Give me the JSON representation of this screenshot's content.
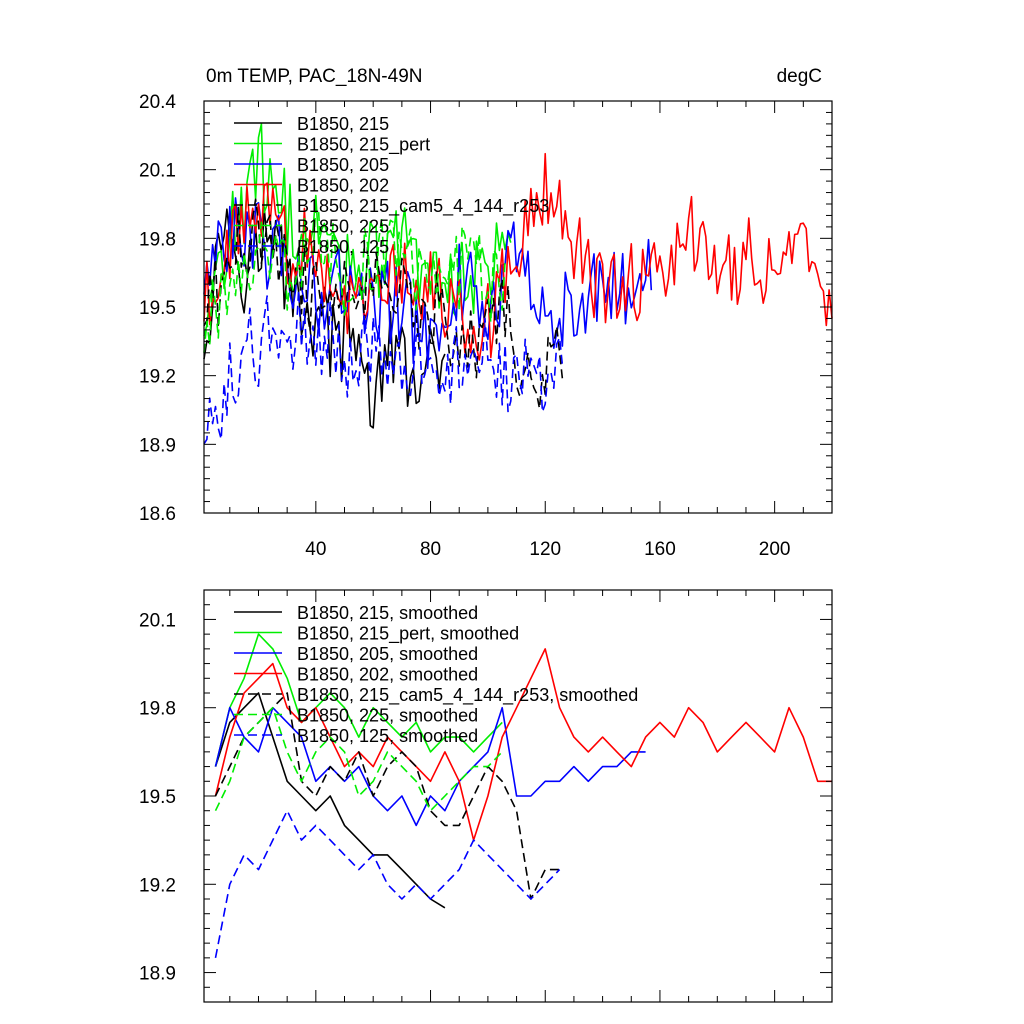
{
  "chart_data": [
    {
      "type": "line",
      "title_left": "0m TEMP, PAC_18N-49N",
      "title_right": "degC",
      "xlim": [
        1,
        220
      ],
      "ylim": [
        18.6,
        20.4
      ],
      "x_ticks": [
        40,
        80,
        120,
        160,
        200
      ],
      "y_ticks": [
        18.6,
        18.9,
        19.2,
        19.5,
        19.8,
        20.1,
        20.4
      ],
      "x_tick_labels": [
        "40",
        "80",
        "120",
        "160",
        "200"
      ],
      "y_tick_labels": [
        "18.6",
        "18.9",
        "19.2",
        "19.5",
        "19.8",
        "20.1",
        "20.4"
      ],
      "legend_placement": "top-left",
      "legend": [
        "B1850, 215",
        "B1850, 215_pert",
        "B1850, 205",
        "B1850, 202",
        "B1850, 215_cam5_4_144_r253",
        "B1850, 225",
        "B1850, 125"
      ],
      "series": [
        {
          "name": "B1850, 215",
          "color": "#000000",
          "dash": "solid",
          "x_end": 85,
          "x": [
            1,
            8,
            15,
            25,
            35,
            45,
            55,
            60,
            65,
            75,
            85
          ],
          "y": [
            19.4,
            19.9,
            19.7,
            19.8,
            19.5,
            19.4,
            19.3,
            19.1,
            19.3,
            19.2,
            19.2
          ]
        },
        {
          "name": "B1850, 215_pert",
          "color": "#00ee00",
          "dash": "solid",
          "x_end": 108,
          "x": [
            1,
            10,
            20,
            30,
            40,
            50,
            60,
            70,
            80,
            90,
            100,
            108
          ],
          "y": [
            19.4,
            19.8,
            20.1,
            19.9,
            19.8,
            19.7,
            19.7,
            19.8,
            19.6,
            19.6,
            19.7,
            19.8
          ]
        },
        {
          "name": "B1850, 205",
          "color": "#0000ff",
          "dash": "solid",
          "x_end": 157,
          "x": [
            1,
            10,
            20,
            30,
            40,
            50,
            60,
            70,
            80,
            90,
            100,
            110,
            120,
            130,
            140,
            150,
            157
          ],
          "y": [
            19.6,
            19.8,
            19.8,
            19.7,
            19.6,
            19.6,
            19.5,
            19.5,
            19.4,
            19.6,
            19.5,
            19.7,
            19.5,
            19.5,
            19.6,
            19.6,
            19.7
          ]
        },
        {
          "name": "B1850, 202",
          "color": "#ff0000",
          "dash": "solid",
          "x_end": 220,
          "x": [
            1,
            10,
            20,
            30,
            40,
            50,
            60,
            70,
            80,
            90,
            98,
            108,
            120,
            130,
            140,
            150,
            160,
            170,
            180,
            190,
            200,
            210,
            215,
            220
          ],
          "y": [
            19.5,
            19.8,
            19.9,
            19.8,
            19.7,
            19.6,
            19.6,
            19.7,
            19.6,
            19.5,
            19.3,
            19.8,
            20.0,
            19.8,
            19.6,
            19.6,
            19.6,
            19.8,
            19.7,
            19.7,
            19.7,
            19.8,
            19.6,
            19.6
          ]
        },
        {
          "name": "B1850, 215_cam5_4_144_r253",
          "color": "#000000",
          "dash": "dashed",
          "x_end": 126,
          "x": [
            1,
            10,
            20,
            28,
            35,
            45,
            55,
            65,
            75,
            85,
            95,
            105,
            115,
            120,
            126
          ],
          "y": [
            19.5,
            19.7,
            19.8,
            19.8,
            19.6,
            19.6,
            19.6,
            19.6,
            19.5,
            19.4,
            19.4,
            19.5,
            19.1,
            19.2,
            19.3
          ]
        },
        {
          "name": "B1850, 225",
          "color": "#00ee00",
          "dash": "dashed",
          "x_end": 106,
          "x": [
            1,
            10,
            20,
            30,
            40,
            50,
            60,
            70,
            80,
            90,
            100,
            106
          ],
          "y": [
            19.4,
            19.6,
            19.8,
            19.7,
            19.8,
            19.6,
            19.7,
            19.7,
            19.6,
            19.7,
            19.6,
            19.7
          ]
        },
        {
          "name": "B1850, 125",
          "color": "#0000ff",
          "dash": "dashed",
          "x_end": 126,
          "x": [
            1,
            10,
            20,
            30,
            40,
            50,
            60,
            70,
            80,
            90,
            100,
            110,
            115,
            120,
            126
          ],
          "y": [
            18.9,
            19.2,
            19.3,
            19.4,
            19.4,
            19.3,
            19.3,
            19.2,
            19.2,
            19.3,
            19.3,
            19.2,
            19.1,
            19.2,
            19.3
          ]
        }
      ]
    },
    {
      "type": "line",
      "xlim": [
        1,
        220
      ],
      "ylim": [
        18.8,
        20.2
      ],
      "x_ticks": [
        40,
        80,
        120,
        160,
        200
      ],
      "y_ticks": [
        18.9,
        19.2,
        19.5,
        19.8,
        20.1
      ],
      "y_tick_labels": [
        "18.9",
        "19.2",
        "19.5",
        "19.8",
        "20.1"
      ],
      "legend_placement": "top-left",
      "legend": [
        "B1850, 215, smoothed",
        "B1850, 215_pert, smoothed",
        "B1850, 205, smoothed",
        "B1850, 202, smoothed",
        "B1850, 215_cam5_4_144_r253, smoothed",
        "B1850, 225, smoothed",
        "B1850, 125, smoothed"
      ],
      "series": [
        {
          "name": "B1850, 215, smoothed",
          "color": "#000000",
          "dash": "solid",
          "x": [
            5,
            10,
            15,
            20,
            25,
            30,
            35,
            40,
            45,
            50,
            55,
            60,
            65,
            70,
            75,
            80,
            85
          ],
          "y": [
            19.6,
            19.75,
            19.8,
            19.85,
            19.7,
            19.55,
            19.5,
            19.45,
            19.5,
            19.4,
            19.35,
            19.3,
            19.3,
            19.25,
            19.2,
            19.15,
            19.12
          ]
        },
        {
          "name": "B1850, 215_pert, smoothed",
          "color": "#00ee00",
          "dash": "solid",
          "x": [
            5,
            10,
            15,
            20,
            25,
            30,
            35,
            40,
            45,
            50,
            55,
            60,
            65,
            70,
            75,
            80,
            85,
            90,
            95,
            100,
            105
          ],
          "y": [
            19.6,
            19.8,
            19.9,
            20.05,
            20.0,
            19.9,
            19.75,
            19.8,
            19.85,
            19.8,
            19.7,
            19.8,
            19.75,
            19.7,
            19.75,
            19.65,
            19.7,
            19.7,
            19.65,
            19.7,
            19.75
          ]
        },
        {
          "name": "B1850, 205, smoothed",
          "color": "#0000ff",
          "dash": "solid",
          "x": [
            5,
            10,
            15,
            20,
            25,
            30,
            35,
            40,
            45,
            50,
            55,
            60,
            65,
            70,
            75,
            80,
            85,
            90,
            95,
            100,
            105,
            110,
            115,
            120,
            125,
            130,
            135,
            140,
            145,
            150,
            155
          ],
          "y": [
            19.6,
            19.8,
            19.7,
            19.65,
            19.8,
            19.75,
            19.7,
            19.55,
            19.6,
            19.55,
            19.6,
            19.5,
            19.45,
            19.5,
            19.4,
            19.5,
            19.45,
            19.55,
            19.6,
            19.65,
            19.8,
            19.5,
            19.5,
            19.55,
            19.55,
            19.6,
            19.55,
            19.6,
            19.6,
            19.65,
            19.65
          ]
        },
        {
          "name": "B1850, 202, smoothed",
          "color": "#ff0000",
          "dash": "solid",
          "x": [
            5,
            10,
            15,
            20,
            25,
            30,
            35,
            40,
            45,
            50,
            55,
            60,
            65,
            70,
            75,
            80,
            85,
            90,
            95,
            100,
            105,
            110,
            115,
            120,
            125,
            130,
            135,
            140,
            145,
            150,
            155,
            160,
            165,
            170,
            175,
            180,
            185,
            190,
            195,
            200,
            205,
            210,
            215,
            220
          ],
          "y": [
            19.5,
            19.7,
            19.85,
            19.9,
            19.95,
            19.8,
            19.75,
            19.8,
            19.7,
            19.6,
            19.65,
            19.6,
            19.7,
            19.65,
            19.6,
            19.55,
            19.65,
            19.55,
            19.35,
            19.5,
            19.7,
            19.8,
            19.9,
            20.0,
            19.8,
            19.7,
            19.65,
            19.7,
            19.65,
            19.6,
            19.7,
            19.75,
            19.7,
            19.8,
            19.75,
            19.65,
            19.7,
            19.75,
            19.7,
            19.65,
            19.8,
            19.7,
            19.55,
            19.55
          ]
        },
        {
          "name": "B1850, 215_cam5_4_144_r253, smoothed",
          "color": "#000000",
          "dash": "dashed",
          "x": [
            5,
            10,
            15,
            20,
            25,
            30,
            35,
            40,
            45,
            50,
            55,
            60,
            65,
            70,
            75,
            80,
            85,
            90,
            95,
            100,
            105,
            110,
            115,
            120,
            125
          ],
          "y": [
            19.5,
            19.6,
            19.7,
            19.75,
            19.8,
            19.85,
            19.55,
            19.5,
            19.6,
            19.55,
            19.65,
            19.5,
            19.6,
            19.65,
            19.6,
            19.45,
            19.4,
            19.4,
            19.5,
            19.6,
            19.55,
            19.45,
            19.15,
            19.25,
            19.25
          ]
        },
        {
          "name": "B1850, 225, smoothed",
          "color": "#00ee00",
          "dash": "dashed",
          "x": [
            5,
            10,
            15,
            20,
            25,
            30,
            35,
            40,
            45,
            50,
            55,
            60,
            65,
            70,
            75,
            80,
            85,
            90,
            95,
            100,
            105
          ],
          "y": [
            19.45,
            19.55,
            19.7,
            19.75,
            19.8,
            19.65,
            19.55,
            19.65,
            19.7,
            19.65,
            19.5,
            19.55,
            19.65,
            19.6,
            19.55,
            19.45,
            19.5,
            19.55,
            19.6,
            19.6,
            19.65
          ]
        },
        {
          "name": "B1850, 125, smoothed",
          "color": "#0000ff",
          "dash": "dashed",
          "x": [
            5,
            10,
            15,
            20,
            25,
            30,
            35,
            40,
            45,
            50,
            55,
            60,
            65,
            70,
            75,
            80,
            85,
            90,
            95,
            100,
            105,
            110,
            115,
            120,
            125
          ],
          "y": [
            18.95,
            19.2,
            19.3,
            19.25,
            19.35,
            19.45,
            19.35,
            19.4,
            19.35,
            19.3,
            19.25,
            19.3,
            19.2,
            19.15,
            19.2,
            19.15,
            19.2,
            19.25,
            19.35,
            19.3,
            19.25,
            19.2,
            19.15,
            19.2,
            19.25
          ]
        }
      ]
    }
  ]
}
